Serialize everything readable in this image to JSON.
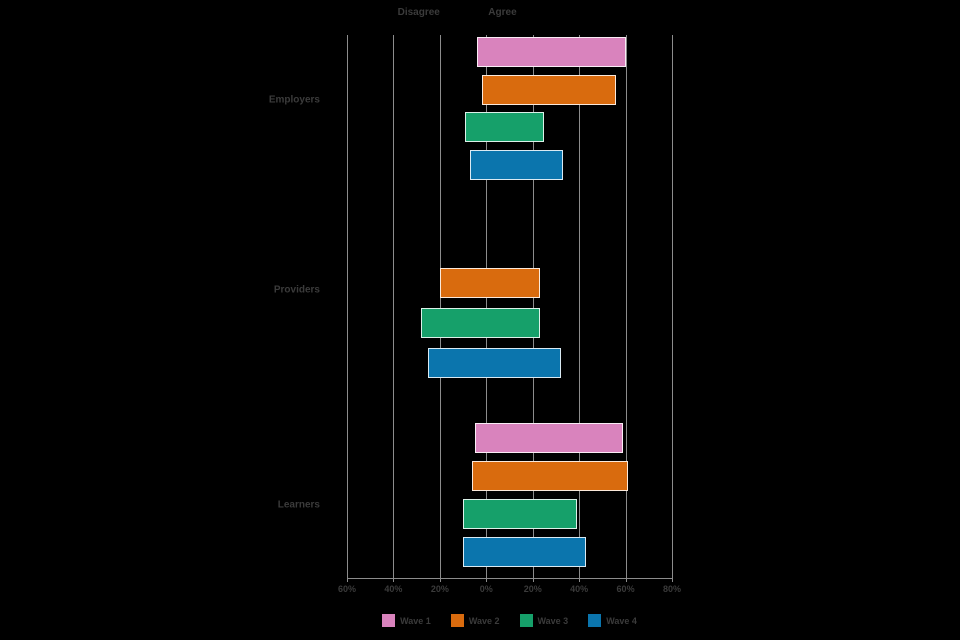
{
  "chart_data": {
    "type": "bar",
    "variant": "diverging-horizontal",
    "title": "",
    "top_labels": {
      "disagree": "Disagree",
      "agree": "Agree"
    },
    "axis": {
      "min": -60,
      "max": 80,
      "ticks": [
        -60,
        -40,
        -20,
        0,
        20,
        40,
        60,
        80
      ],
      "tick_labels": [
        "60%",
        "40%",
        "20%",
        "0%",
        "20%",
        "40%",
        "60%",
        "80%"
      ]
    },
    "categories": [
      "Employers",
      "Providers",
      "Learners"
    ],
    "series_names": [
      "Wave 1",
      "Wave 2",
      "Wave 3",
      "Wave 4"
    ],
    "groups": [
      {
        "label": "Employers",
        "bars": [
          {
            "series": "Wave 1",
            "disagree": -4,
            "agree": 60
          },
          {
            "series": "Wave 2",
            "disagree": -2,
            "agree": 56
          },
          {
            "series": "Wave 3",
            "disagree": -9,
            "agree": 25
          },
          {
            "series": "Wave 4",
            "disagree": -7,
            "agree": 33
          }
        ]
      },
      {
        "label": "Providers",
        "bars": [
          {
            "series": "Wave 2",
            "disagree": -20,
            "agree": 23
          },
          {
            "series": "Wave 3",
            "disagree": -28,
            "agree": 23
          },
          {
            "series": "Wave 4",
            "disagree": -25,
            "agree": 32
          }
        ]
      },
      {
        "label": "Learners",
        "bars": [
          {
            "series": "Wave 1",
            "disagree": -5,
            "agree": 59
          },
          {
            "series": "Wave 2",
            "disagree": -6,
            "agree": 61
          },
          {
            "series": "Wave 3",
            "disagree": -10,
            "agree": 39
          },
          {
            "series": "Wave 4",
            "disagree": -10,
            "agree": 43
          }
        ]
      }
    ],
    "legend": [
      {
        "label": "Wave 1",
        "color": "#d983bd"
      },
      {
        "label": "Wave 2",
        "color": "#d96b0e"
      },
      {
        "label": "Wave 3",
        "color": "#16a06a"
      },
      {
        "label": "Wave 4",
        "color": "#0b75ad"
      }
    ],
    "colors": {
      "grid": "#8c8c8c",
      "text": "#3b3b3b",
      "background": "#000000",
      "bar_outline": "#ffffff"
    },
    "legend_position": "bottom-center",
    "grid": "vertical-on"
  }
}
